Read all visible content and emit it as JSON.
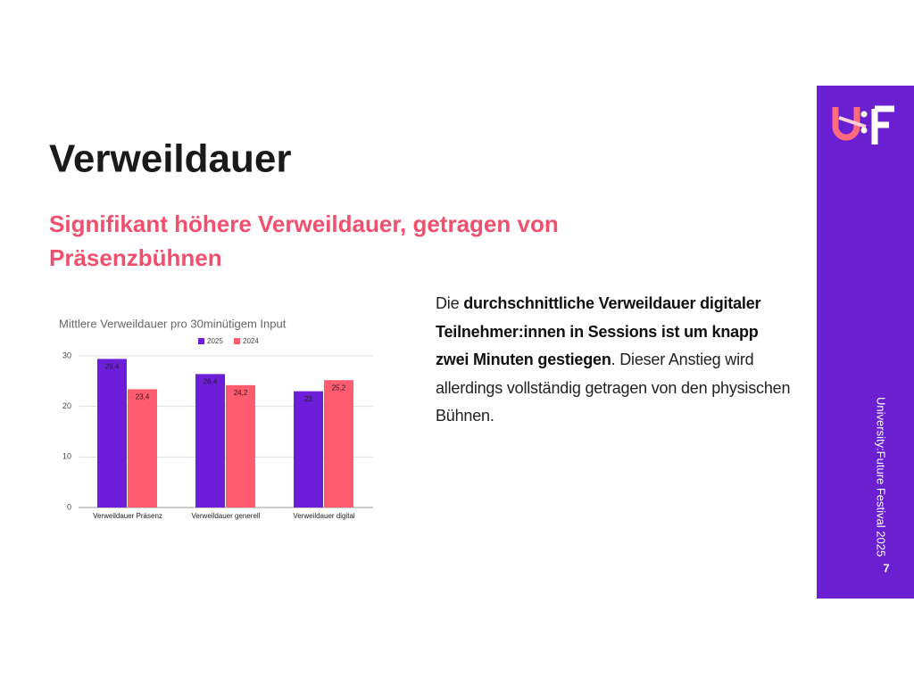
{
  "slide": {
    "title": "Verweildauer",
    "subtitle_lines": [
      "Signifikant höhere Verweildauer, getragen von",
      "Präsenzbühnen"
    ],
    "body": [
      "Die ",
      "durchschnittliche Verweildauer digitaler Teilnehmer:innen in Sessions ist um knapp zwei Minuten gestiegen",
      ". Dieser Anstieg wird allerdings vollständig getragen von den physischen Bühnen."
    ],
    "footer": "University:Future Festival 2025",
    "page_number": "7"
  },
  "chart_data": {
    "type": "bar",
    "title": "Mittlere Verweildauer pro 30minütigem Input",
    "categories": [
      "Verweildauer Präsenz",
      "Verweildauer generell",
      "Verweildauer digital"
    ],
    "series": [
      {
        "name": "2025",
        "color": "#6d1ed8",
        "values": [
          29.4,
          26.4,
          23
        ],
        "value_labels": [
          "29,4",
          "26,4",
          "23"
        ]
      },
      {
        "name": "2024",
        "color": "#ff5c6f",
        "values": [
          23.4,
          24.2,
          25.2
        ],
        "value_labels": [
          "23,4",
          "24,2",
          "25,2"
        ]
      }
    ],
    "ylim": [
      0,
      30
    ],
    "yticks": [
      0,
      10,
      20,
      30
    ],
    "grid": true,
    "legend": "top"
  }
}
